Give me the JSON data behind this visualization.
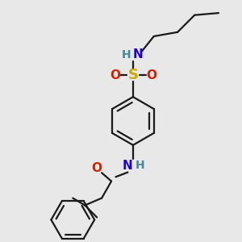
{
  "bg_color": "#e8e8e8",
  "bond_color": "#1a1a1a",
  "N_color": "#2200cc",
  "O_color": "#cc2200",
  "S_color": "#ccaa00",
  "H_color": "#448899",
  "lw": 1.6,
  "figsize": [
    3.0,
    3.0
  ],
  "dpi": 100,
  "xlim": [
    0,
    10
  ],
  "ylim": [
    0,
    10
  ]
}
